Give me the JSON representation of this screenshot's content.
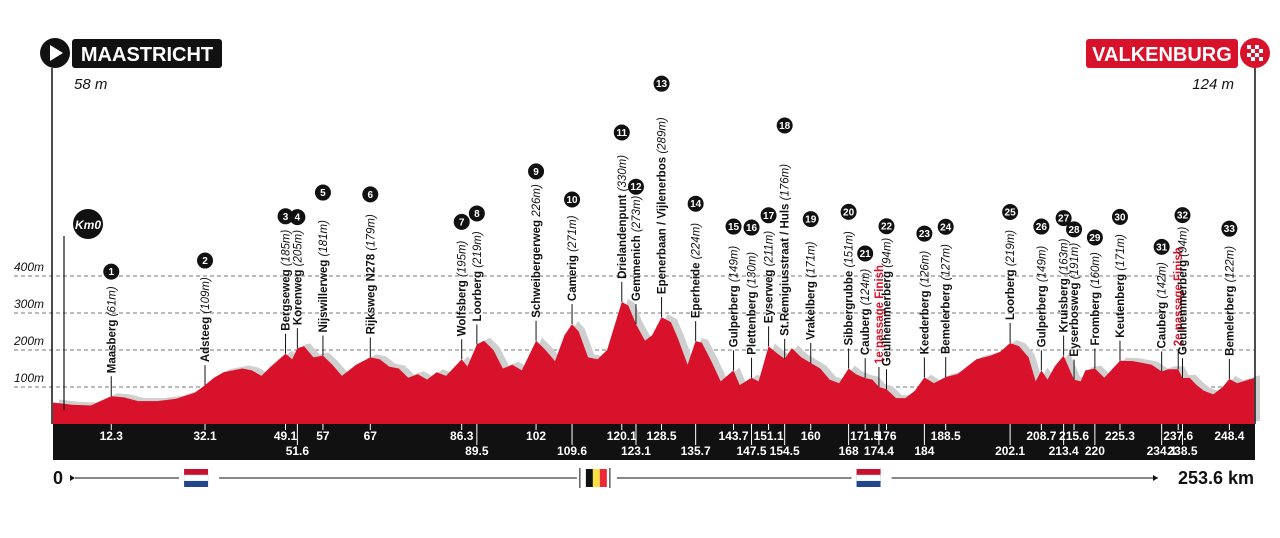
{
  "start": {
    "name": "MAASTRICHT",
    "elevation": "58 m"
  },
  "finish": {
    "name": "VALKENBURG",
    "elevation": "124 m"
  },
  "km0_label": "Km0",
  "scale_start": "0",
  "scale_end": "253.6 km",
  "colors": {
    "profile": "#d7122a",
    "shadow": "#cfcfcf",
    "band": "#111111",
    "finish_text": "#d7122a"
  },
  "chart_data": {
    "type": "area",
    "xlabel": "",
    "ylabel": "",
    "x_range_km": [
      0,
      253.6
    ],
    "y_ticks": [
      {
        "v": 100,
        "label": "100m"
      },
      {
        "v": 200,
        "label": "200m"
      },
      {
        "v": 300,
        "label": "300m"
      },
      {
        "v": 400,
        "label": "400m"
      }
    ],
    "profile": [
      [
        0,
        58
      ],
      [
        2,
        55
      ],
      [
        4,
        52
      ],
      [
        8,
        50
      ],
      [
        10,
        62
      ],
      [
        12.3,
        75
      ],
      [
        15,
        72
      ],
      [
        18,
        62
      ],
      [
        22,
        62
      ],
      [
        26,
        68
      ],
      [
        30,
        85
      ],
      [
        32.1,
        105
      ],
      [
        34,
        125
      ],
      [
        36,
        140
      ],
      [
        38,
        145
      ],
      [
        40,
        150
      ],
      [
        42,
        145
      ],
      [
        44,
        130
      ],
      [
        46,
        155
      ],
      [
        49.1,
        190
      ],
      [
        50.5,
        175
      ],
      [
        51.6,
        205
      ],
      [
        53,
        210
      ],
      [
        55,
        180
      ],
      [
        57,
        185
      ],
      [
        59,
        160
      ],
      [
        61,
        130
      ],
      [
        64,
        160
      ],
      [
        67,
        180
      ],
      [
        69,
        175
      ],
      [
        71,
        155
      ],
      [
        73,
        150
      ],
      [
        75,
        125
      ],
      [
        77,
        135
      ],
      [
        79,
        120
      ],
      [
        81,
        140
      ],
      [
        83,
        130
      ],
      [
        86.3,
        175
      ],
      [
        87.5,
        155
      ],
      [
        89.5,
        215
      ],
      [
        91,
        225
      ],
      [
        93,
        200
      ],
      [
        95,
        150
      ],
      [
        97,
        160
      ],
      [
        99,
        145
      ],
      [
        102,
        225
      ],
      [
        104,
        200
      ],
      [
        106,
        170
      ],
      [
        108,
        240
      ],
      [
        109.6,
        270
      ],
      [
        111,
        250
      ],
      [
        113,
        180
      ],
      [
        115,
        175
      ],
      [
        117,
        200
      ],
      [
        120.1,
        330
      ],
      [
        121.5,
        320
      ],
      [
        123.1,
        270
      ],
      [
        125,
        225
      ],
      [
        126.5,
        240
      ],
      [
        128.5,
        289
      ],
      [
        130.5,
        275
      ],
      [
        132,
        230
      ],
      [
        134,
        160
      ],
      [
        135.7,
        224
      ],
      [
        137,
        220
      ],
      [
        139,
        170
      ],
      [
        141,
        115
      ],
      [
        143.7,
        145
      ],
      [
        145,
        105
      ],
      [
        147.5,
        125
      ],
      [
        149,
        115
      ],
      [
        151.1,
        210
      ],
      [
        153,
        190
      ],
      [
        154.5,
        176
      ],
      [
        156,
        205
      ],
      [
        158,
        180
      ],
      [
        160,
        165
      ],
      [
        162,
        150
      ],
      [
        164,
        120
      ],
      [
        166,
        110
      ],
      [
        168,
        150
      ],
      [
        169.5,
        135
      ],
      [
        171.5,
        124
      ],
      [
        173,
        120
      ],
      [
        174.4,
        100
      ],
      [
        176,
        94
      ],
      [
        178,
        70
      ],
      [
        180,
        70
      ],
      [
        182,
        90
      ],
      [
        184,
        126
      ],
      [
        186,
        110
      ],
      [
        188.5,
        127
      ],
      [
        191,
        135
      ],
      [
        193,
        155
      ],
      [
        195,
        175
      ],
      [
        198,
        185
      ],
      [
        200,
        195
      ],
      [
        202.1,
        219
      ],
      [
        204,
        210
      ],
      [
        206,
        180
      ],
      [
        207.5,
        115
      ],
      [
        208.7,
        145
      ],
      [
        210,
        120
      ],
      [
        211.5,
        155
      ],
      [
        213.4,
        185
      ],
      [
        215.6,
        120
      ],
      [
        217,
        115
      ],
      [
        218,
        145
      ],
      [
        220,
        150
      ],
      [
        222,
        125
      ],
      [
        225.3,
        171
      ],
      [
        228,
        170
      ],
      [
        230,
        165
      ],
      [
        232,
        160
      ],
      [
        234.1,
        142
      ],
      [
        235.5,
        148
      ],
      [
        237.6,
        148
      ],
      [
        238.5,
        124
      ],
      [
        240,
        125
      ],
      [
        241.5,
        105
      ],
      [
        243,
        90
      ],
      [
        245,
        80
      ],
      [
        247,
        100
      ],
      [
        248.4,
        122
      ],
      [
        250,
        110
      ],
      [
        253.6,
        124
      ]
    ],
    "climbs": [
      {
        "n": "1",
        "name": "Maasberg",
        "elev": "(61m)",
        "km": "12.3",
        "kmv": 12.3,
        "row": 0
      },
      {
        "n": "2",
        "name": "Adsteeg",
        "elev": "(109m)",
        "km": "32.1",
        "kmv": 32.1,
        "row": 0
      },
      {
        "n": "3",
        "name": "Bergseweg",
        "elev": "(185m)",
        "km": "49.1",
        "kmv": 49.1,
        "row": 0
      },
      {
        "n": "4",
        "name": "Korenweg",
        "elev": "(205m)",
        "km": "51.6",
        "kmv": 51.6,
        "row": 1
      },
      {
        "n": "5",
        "name": "Nijswillerweg",
        "elev": "(181m)",
        "km": "57",
        "kmv": 57,
        "row": 0
      },
      {
        "n": "6",
        "name": "Rijksweg N278",
        "elev": "(179m)",
        "km": "67",
        "kmv": 67,
        "row": 0
      },
      {
        "n": "7",
        "name": "Wolfsberg",
        "elev": "(195m)",
        "km": "86.3",
        "kmv": 86.3,
        "row": 0
      },
      {
        "n": "8",
        "name": "Loorberg",
        "elev": "(219m)",
        "km": "89.5",
        "kmv": 89.5,
        "row": 1
      },
      {
        "n": "9",
        "name": "Schweibergerweg",
        "elev": "226m)",
        "km": "102",
        "kmv": 102,
        "row": 0
      },
      {
        "n": "10",
        "name": "Camerig",
        "elev": "(271m)",
        "km": "109.6",
        "kmv": 109.6,
        "row": 1
      },
      {
        "n": "11",
        "name": "Drielandenpunt",
        "elev": "(330m)",
        "km": "120.1",
        "kmv": 120.1,
        "row": 0
      },
      {
        "n": "12",
        "name": "Gemmenich",
        "elev": "(273m)",
        "km": "123.1",
        "kmv": 123.1,
        "row": 1
      },
      {
        "n": "13",
        "name": "Epenerbaan / Vijlenerbos",
        "elev": "(289m)",
        "km": "128.5",
        "kmv": 128.5,
        "row": 0
      },
      {
        "n": "14",
        "name": "Eperheide",
        "elev": "(224m)",
        "km": "135.7",
        "kmv": 135.7,
        "row": 1
      },
      {
        "n": "15",
        "name": "Gulperberg",
        "elev": "(149m)",
        "km": "143.7",
        "kmv": 143.7,
        "row": 0
      },
      {
        "n": "16",
        "name": "Plettenberg",
        "elev": "(130m)",
        "km": "147.5",
        "kmv": 147.5,
        "row": 1
      },
      {
        "n": "17",
        "name": "Eyserweg",
        "elev": "(211m)",
        "km": "151.1",
        "kmv": 151.1,
        "row": 0
      },
      {
        "n": "18",
        "name": "St.Remigiusstraat / Huls",
        "elev": "(176m)",
        "km": "154.5",
        "kmv": 154.5,
        "row": 1
      },
      {
        "n": "19",
        "name": "Vrakelberg",
        "elev": "(171m)",
        "km": "160",
        "kmv": 160,
        "row": 0
      },
      {
        "n": "20",
        "name": "Sibbergrubbe",
        "elev": "(151m)",
        "km": "168",
        "kmv": 168,
        "row": 1
      },
      {
        "n": "21",
        "name": "Cauberg",
        "elev": "(124m)",
        "km": "171.5",
        "kmv": 171.5,
        "row": 0
      },
      {
        "n": "",
        "name": "1e passage Finish",
        "elev": "",
        "km": "174.4",
        "kmv": 174.4,
        "row": 1,
        "red": true
      },
      {
        "n": "22",
        "name": "Geulhemmerberg",
        "elev": "(94m)",
        "km": "176",
        "kmv": 176,
        "row": 0
      },
      {
        "n": "23",
        "name": "Keederberg",
        "elev": "(126m)",
        "km": "184",
        "kmv": 184,
        "row": 1
      },
      {
        "n": "24",
        "name": "Bemelerberg",
        "elev": "(127m)",
        "km": "188.5",
        "kmv": 188.5,
        "row": 0
      },
      {
        "n": "25",
        "name": "Loorberg",
        "elev": "(219m)",
        "km": "202.1",
        "kmv": 202.1,
        "row": 1
      },
      {
        "n": "26",
        "name": "Gulperberg",
        "elev": "(149m)",
        "km": "208.7",
        "kmv": 208.7,
        "row": 0
      },
      {
        "n": "27",
        "name": "Kruisberg",
        "elev": "(163m)",
        "km": "213.4",
        "kmv": 213.4,
        "row": 1
      },
      {
        "n": "28",
        "name": "Eyserbosweg",
        "elev": "(191m)",
        "km": "215.6",
        "kmv": 215.6,
        "row": 0
      },
      {
        "n": "29",
        "name": "Fromberg",
        "elev": "(160m)",
        "km": "220",
        "kmv": 220,
        "row": 1
      },
      {
        "n": "30",
        "name": "Keutenberg",
        "elev": "(171m)",
        "km": "225.3",
        "kmv": 225.3,
        "row": 0
      },
      {
        "n": "31",
        "name": "Cauberg",
        "elev": "(142m)",
        "km": "234.1",
        "kmv": 234.1,
        "row": 1
      },
      {
        "n": "",
        "name": "2e passage Finish",
        "elev": "",
        "km": "237.6",
        "kmv": 237.6,
        "row": 0,
        "red": true
      },
      {
        "n": "32",
        "name": "Geulhemmerberg",
        "elev": "(94m)",
        "km": "238.5",
        "kmv": 238.5,
        "row": 1
      },
      {
        "n": "33",
        "name": "Bemelerberg",
        "elev": "(122m)",
        "km": "248.4",
        "kmv": 248.4,
        "row": 0
      }
    ],
    "flags": [
      {
        "country": "NL",
        "km": 30
      },
      {
        "country": "BE",
        "km": 114
      },
      {
        "country": "NL",
        "km": 172
      }
    ]
  }
}
